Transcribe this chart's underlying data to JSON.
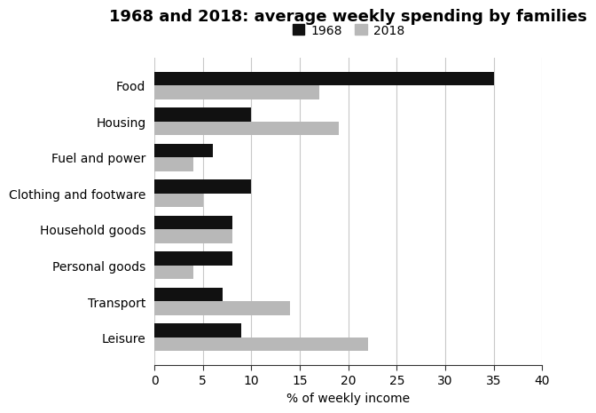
{
  "title": "1968 and 2018: average weekly spending by families",
  "xlabel": "% of weekly income",
  "categories": [
    "Food",
    "Housing",
    "Fuel and power",
    "Clothing and footware",
    "Household goods",
    "Personal goods",
    "Transport",
    "Leisure"
  ],
  "values_1968": [
    35,
    10,
    6,
    10,
    8,
    8,
    7,
    9
  ],
  "values_2018": [
    17,
    19,
    4,
    5,
    8,
    4,
    14,
    22
  ],
  "color_1968": "#111111",
  "color_2018": "#b8b8b8",
  "xlim": [
    0,
    40
  ],
  "xticks": [
    0,
    5,
    10,
    15,
    20,
    25,
    30,
    35,
    40
  ],
  "bar_height": 0.38,
  "legend_labels": [
    "1968",
    "2018"
  ],
  "grid_color": "#c8c8c8",
  "background_color": "#ffffff",
  "title_fontsize": 13,
  "label_fontsize": 10,
  "tick_fontsize": 10
}
